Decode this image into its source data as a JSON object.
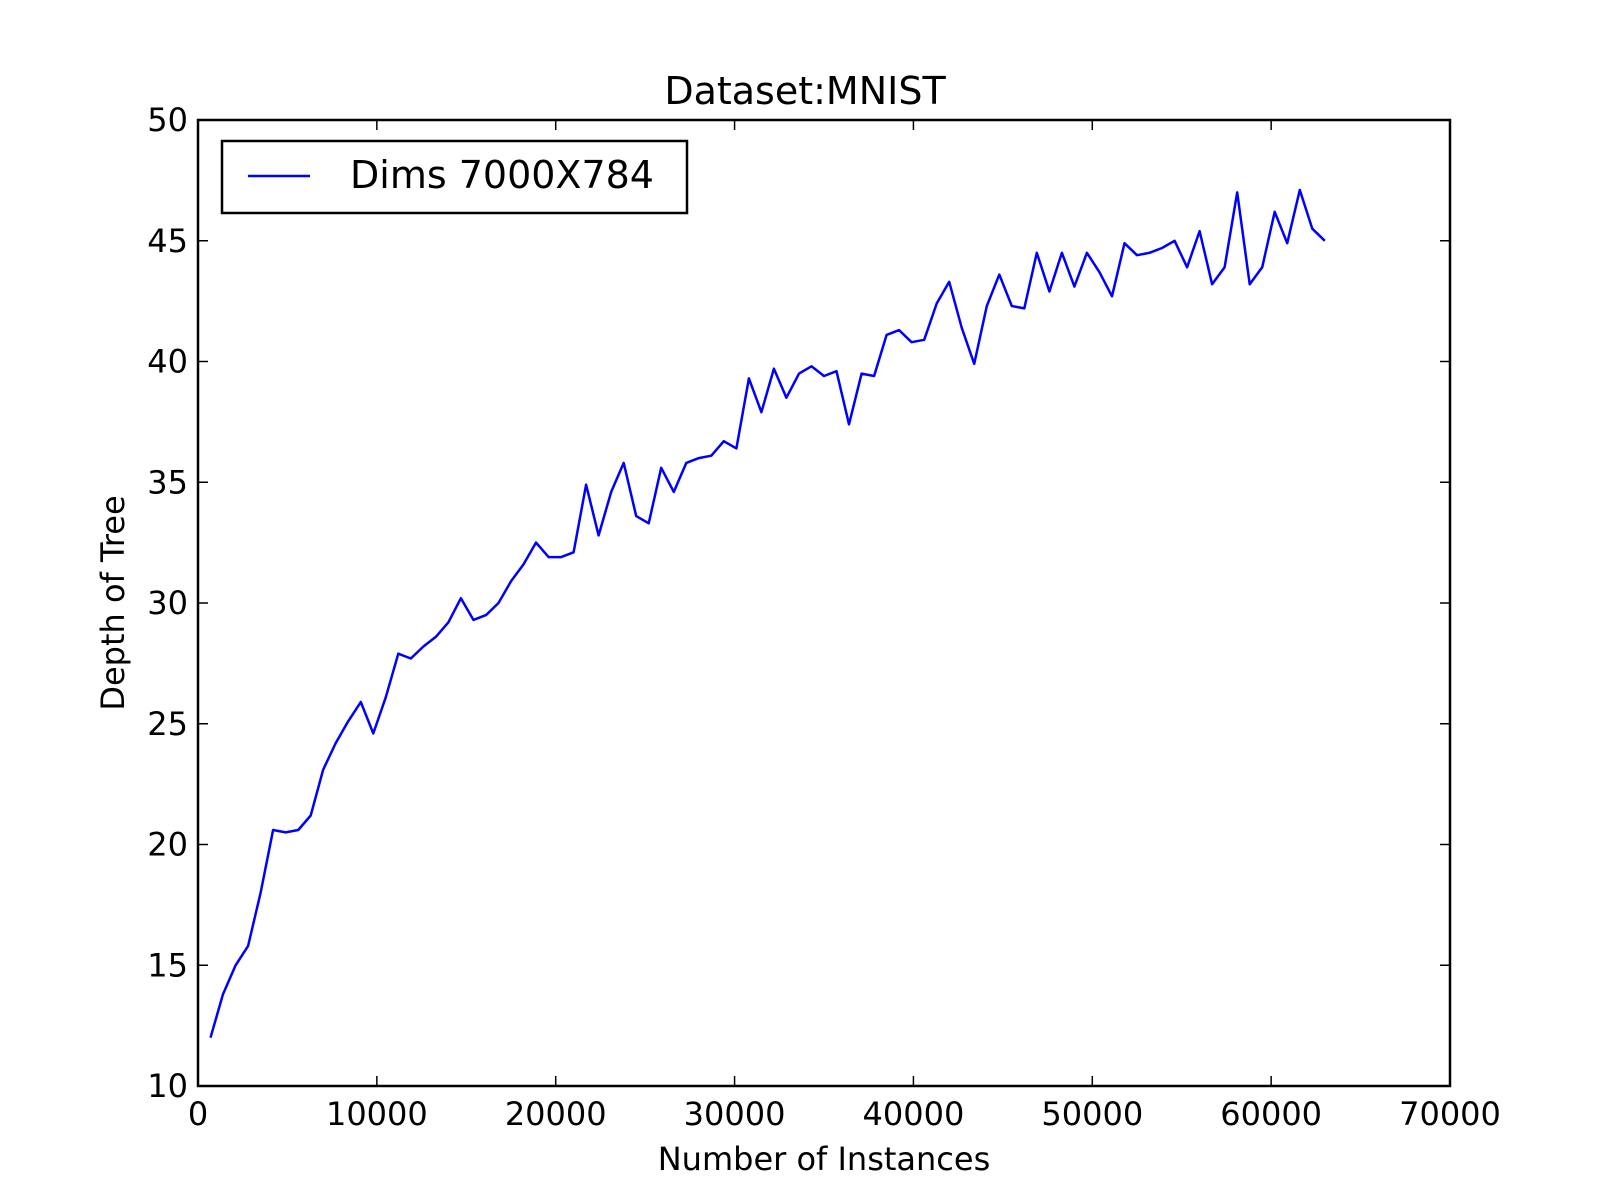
{
  "chart_data": {
    "type": "line",
    "title": "Dataset:MNIST",
    "xlabel": "Number of Instances",
    "ylabel": "Depth of Tree",
    "xlim": [
      0,
      70000
    ],
    "ylim": [
      10,
      50
    ],
    "xticks": [
      "0",
      "10000",
      "20000",
      "30000",
      "40000",
      "50000",
      "60000",
      "70000"
    ],
    "yticks": [
      "10",
      "15",
      "20",
      "25",
      "30",
      "35",
      "40",
      "45",
      "50"
    ],
    "grid": false,
    "legend_position": "top-left",
    "series": [
      {
        "name": "Dims 7000X784",
        "color": "#0000ff",
        "x": [
          700,
          1400,
          2100,
          2800,
          3500,
          4200,
          4900,
          5600,
          6300,
          7000,
          7700,
          8400,
          9100,
          9800,
          10500,
          11200,
          11900,
          12600,
          13300,
          14000,
          14700,
          15400,
          16100,
          16800,
          17500,
          18200,
          18900,
          19600,
          20300,
          21000,
          21700,
          22400,
          23100,
          23800,
          24500,
          25200,
          25900,
          26600,
          27300,
          28000,
          28700,
          29400,
          30100,
          30800,
          31500,
          32200,
          32900,
          33600,
          34300,
          35000,
          35700,
          36400,
          37100,
          37800,
          38500,
          39200,
          39900,
          40600,
          41300,
          42000,
          42700,
          43400,
          44100,
          44800,
          45500,
          46200,
          46900,
          47600,
          48300,
          49000,
          49700,
          50400,
          51100,
          51800,
          52500,
          53200,
          53900,
          54600,
          55300,
          56000,
          56700,
          57400,
          58100,
          58800,
          59500,
          60200,
          60900,
          61600,
          62300,
          63000
        ],
        "y": [
          12.0,
          13.8,
          15.0,
          15.8,
          18.0,
          20.6,
          20.5,
          20.6,
          21.2,
          23.1,
          24.2,
          25.1,
          25.9,
          24.6,
          26.1,
          27.9,
          27.7,
          28.2,
          28.6,
          29.2,
          30.2,
          29.3,
          29.5,
          30.0,
          30.9,
          31.6,
          32.5,
          31.9,
          31.9,
          32.1,
          34.9,
          32.8,
          34.6,
          35.8,
          33.6,
          33.3,
          35.6,
          34.6,
          35.8,
          36.0,
          36.1,
          36.7,
          36.4,
          39.3,
          37.9,
          39.7,
          38.5,
          39.5,
          39.8,
          39.4,
          39.6,
          37.4,
          39.5,
          39.4,
          41.1,
          41.3,
          40.8,
          40.9,
          42.4,
          43.3,
          41.4,
          39.9,
          42.3,
          43.6,
          42.3,
          42.2,
          44.5,
          42.9,
          44.5,
          43.1,
          44.5,
          43.7,
          42.7,
          44.9,
          44.4,
          44.5,
          44.7,
          45.0,
          43.9,
          45.4,
          43.2,
          43.9,
          47.0,
          43.2,
          43.9,
          46.2,
          44.9,
          47.1,
          45.5,
          45.0
        ]
      }
    ]
  }
}
